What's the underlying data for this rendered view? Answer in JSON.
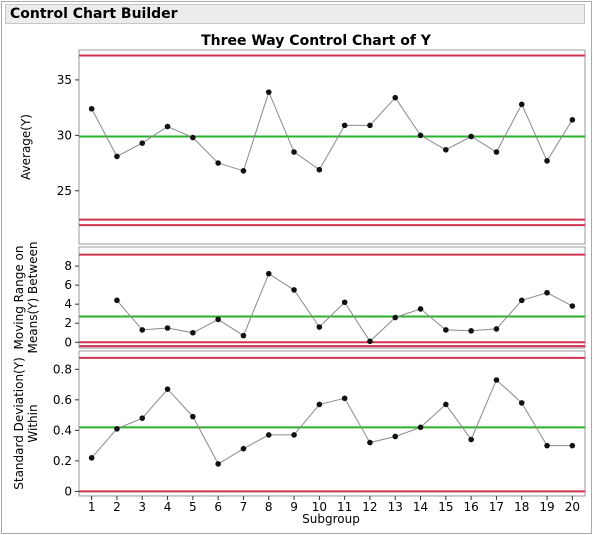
{
  "outline": {
    "title": "Control Chart Builder"
  },
  "chart_data": {
    "type": "line",
    "title": "Three Way Control Chart of Y",
    "xlabel": "Subgroup",
    "x": [
      1,
      2,
      3,
      4,
      5,
      6,
      7,
      8,
      9,
      10,
      11,
      12,
      13,
      14,
      15,
      16,
      17,
      18,
      19,
      20
    ],
    "xlim": [
      0.5,
      20.5
    ],
    "colors": {
      "center": "#2bb12b",
      "limit": "#d0334f",
      "series": "#8a8a8a",
      "point": "#111111"
    },
    "panels": [
      {
        "id": "average",
        "ylabel_lines": [
          "Average(Y)"
        ],
        "ylim": [
          20.2,
          37.7
        ],
        "yticks": [
          25,
          30,
          35
        ],
        "center": 29.9,
        "lcl_lines": [
          22.4,
          21.9
        ],
        "ucl_lines": [
          37.2
        ],
        "values": [
          32.4,
          28.1,
          29.3,
          30.8,
          29.8,
          27.5,
          26.8,
          33.9,
          28.5,
          26.9,
          30.9,
          30.9,
          33.4,
          30.0,
          28.7,
          29.9,
          28.5,
          32.8,
          27.7,
          31.4
        ],
        "start_index": 0
      },
      {
        "id": "moving-range",
        "ylabel_lines": [
          "Moving Range on",
          "Means(Y) Between"
        ],
        "ylim": [
          -0.6,
          10.0
        ],
        "yticks": [
          0,
          2,
          4,
          6,
          8
        ],
        "center": 2.7,
        "lcl_lines": [
          0,
          -0.4
        ],
        "ucl_lines": [
          9.2
        ],
        "values": [
          4.4,
          1.3,
          1.5,
          1.0,
          2.4,
          0.7,
          7.2,
          5.5,
          1.6,
          4.2,
          0.1,
          2.6,
          3.5,
          1.3,
          1.2,
          1.4,
          4.4,
          5.2,
          3.8
        ],
        "start_index": 1
      },
      {
        "id": "std-dev",
        "ylabel_lines": [
          "Standard Deviation(Y)",
          "Within"
        ],
        "ylim": [
          -0.03,
          0.92
        ],
        "yticks": [
          0,
          0.2,
          0.4,
          0.6,
          0.8
        ],
        "tick_labels": [
          "0",
          "0.2",
          "0.4",
          "0.6",
          "0.8"
        ],
        "center": 0.42,
        "lcl_lines": [
          0
        ],
        "ucl_lines": [
          0.875
        ],
        "values": [
          0.22,
          0.41,
          0.48,
          0.67,
          0.49,
          0.18,
          0.28,
          0.37,
          0.37,
          0.57,
          0.61,
          0.32,
          0.36,
          0.42,
          0.57,
          0.34,
          0.73,
          0.58,
          0.3,
          0.3
        ],
        "start_index": 0
      }
    ]
  }
}
